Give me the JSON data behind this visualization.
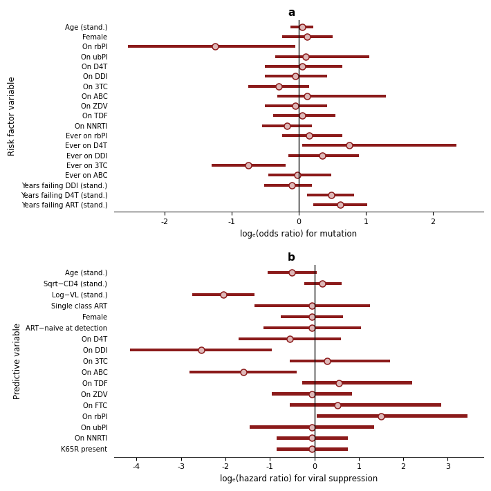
{
  "panel_a": {
    "title": "a",
    "labels": [
      "Age (stand.)",
      "Female",
      "On rbPI",
      "On ubPI",
      "On D4T",
      "On DDI",
      "On 3TC",
      "On ABC",
      "On ZDV",
      "On TDF",
      "On NNRTI",
      "Ever on rbPI",
      "Ever on D4T",
      "Ever on DDI",
      "Ever on 3TC",
      "Ever on ABC",
      "Years failing DDI (stand.)",
      "Years failing D4T (stand.)",
      "Years failing ART (stand.)"
    ],
    "centers": [
      0.05,
      0.12,
      -1.25,
      0.1,
      0.05,
      -0.05,
      -0.3,
      0.12,
      -0.05,
      0.05,
      -0.18,
      0.15,
      0.75,
      0.35,
      -0.75,
      -0.02,
      -0.1,
      0.48,
      0.62
    ],
    "low": [
      -0.12,
      -0.25,
      -2.55,
      -0.35,
      -0.5,
      -0.5,
      -0.75,
      -0.32,
      -0.5,
      -0.38,
      -0.55,
      -0.25,
      0.05,
      -0.15,
      -1.3,
      -0.45,
      -0.52,
      0.12,
      0.22
    ],
    "high": [
      0.22,
      0.5,
      -0.05,
      1.05,
      0.65,
      0.42,
      0.15,
      1.3,
      0.42,
      0.55,
      0.2,
      0.65,
      2.35,
      0.9,
      -0.2,
      0.48,
      0.2,
      0.82,
      1.02
    ],
    "xlabel": "logₑ(odds ratio) for mutation",
    "ylabel": "Risk factor variable",
    "xlim": [
      -2.75,
      2.75
    ],
    "xticks": [
      -2,
      -1,
      0,
      1,
      2
    ]
  },
  "panel_b": {
    "title": "b",
    "labels": [
      "Age (stand.)",
      "Sqrt−CD4 (stand.)",
      "Log−VL (stand.)",
      "Single class ART",
      "Female",
      "ART−naive at detection",
      "On D4T",
      "On DDI",
      "On 3TC",
      "On ABC",
      "On TDF",
      "On ZDV",
      "On FTC",
      "On rbPI",
      "On ubPI",
      "On NNRTI",
      "K65R present"
    ],
    "centers": [
      -0.5,
      0.18,
      -2.05,
      -0.05,
      -0.05,
      -0.05,
      -0.55,
      -2.55,
      0.28,
      -1.6,
      0.55,
      -0.05,
      0.52,
      1.5,
      -0.05,
      -0.05,
      -0.05
    ],
    "low": [
      -1.05,
      -0.22,
      -2.75,
      -1.35,
      -0.75,
      -1.15,
      -1.7,
      -4.15,
      -0.55,
      -2.8,
      -0.28,
      -0.95,
      -0.55,
      0.05,
      -1.45,
      -0.85,
      -0.85
    ],
    "high": [
      0.05,
      0.62,
      -1.35,
      1.25,
      0.65,
      1.05,
      0.6,
      -0.95,
      1.7,
      -0.4,
      2.2,
      0.85,
      2.85,
      3.45,
      1.35,
      0.75,
      0.75
    ],
    "xlabel": "logₑ(hazard ratio) for viral suppression",
    "ylabel": "Predictive variable",
    "xlim": [
      -4.5,
      3.8
    ],
    "xticks": [
      -4,
      -3,
      -2,
      -1,
      0,
      1,
      2,
      3
    ]
  },
  "bar_color": "#8B1A1A",
  "circle_face_color": "#DEB8B8",
  "circle_edge_color": "#8B1A1A",
  "vline_color": "#111111",
  "bar_height": 0.28,
  "circle_size": 6.5,
  "label_fontsize": 7.2,
  "xlabel_fontsize": 8.5,
  "ylabel_fontsize": 8.5,
  "tick_fontsize": 8.0,
  "title_fontsize": 11
}
